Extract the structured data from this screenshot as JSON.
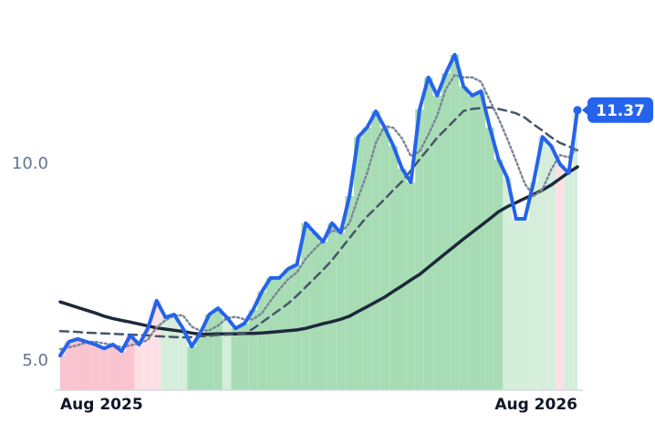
{
  "chart_data": {
    "type": "line",
    "categories": [
      "Aug 2025",
      null,
      null,
      null,
      null,
      null,
      null,
      null,
      null,
      null,
      null,
      null,
      null,
      null,
      null,
      null,
      null,
      null,
      null,
      null,
      null,
      null,
      null,
      null,
      null,
      null,
      null,
      null,
      null,
      null,
      null,
      null,
      null,
      null,
      null,
      null,
      null,
      null,
      null,
      null,
      null,
      null,
      null,
      null,
      null,
      null,
      null,
      null,
      null,
      null,
      null,
      null,
      null,
      null,
      null,
      null,
      null,
      null,
      null,
      "Aug 2026"
    ],
    "ylim": [
      4.26,
      13.24
    ],
    "yticks": [
      {
        "value": 5,
        "label": "5.0"
      },
      {
        "value": 10,
        "label": "10.0"
      }
    ],
    "grid": false,
    "bar_colors": [
      "#f9c4cf",
      "#f9c4cf",
      "#f9c4cf",
      "#f9c4cf",
      "#f9c4cf",
      "#f9c4cf",
      "#f9c4cf",
      "#f9c4cf",
      "#f9c4cf",
      "#fde0e6",
      "#fde0e6",
      "#fde0e6",
      "#d4eedb",
      "#d4eedb",
      "#d4eedb",
      "#a8dcb5",
      "#a8dcb5",
      "#a8dcb5",
      "#a8dcb5",
      "#d4eedb",
      "#a8dcb5",
      "#a8dcb5",
      "#a8dcb5",
      "#a8dcb5",
      "#a8dcb5",
      "#a8dcb5",
      "#a8dcb5",
      "#a8dcb5",
      "#a8dcb5",
      "#a8dcb5",
      "#a8dcb5",
      "#a8dcb5",
      "#a8dcb5",
      "#a8dcb5",
      "#a8dcb5",
      "#a8dcb5",
      "#a8dcb5",
      "#a8dcb5",
      "#a8dcb5",
      "#a8dcb5",
      "#a8dcb5",
      "#a8dcb5",
      "#a8dcb5",
      "#a8dcb5",
      "#a8dcb5",
      "#a8dcb5",
      "#a8dcb5",
      "#a8dcb5",
      "#a8dcb5",
      "#a8dcb5",
      "#a8dcb5",
      "#d4eedb",
      "#d4eedb",
      "#d4eedb",
      "#d4eedb",
      "#d4eedb",
      "#d4eedb",
      "#fde0e6",
      "#d4eedb",
      "#d4eedb"
    ],
    "series": [
      {
        "color": "#2563eb",
        "values": [
          5.14,
          5.49,
          5.56,
          5.49,
          5.42,
          5.32,
          5.42,
          5.25,
          5.65,
          5.42,
          5.83,
          6.53,
          6.11,
          6.18,
          5.83,
          5.37,
          5.72,
          6.18,
          6.34,
          6.11,
          5.83,
          5.95,
          6.3,
          6.76,
          7.11,
          7.11,
          7.34,
          7.45,
          8.5,
          8.26,
          8.03,
          8.5,
          8.26,
          9.19,
          10.69,
          10.93,
          11.34,
          10.93,
          10.46,
          9.88,
          9.54,
          11.39,
          12.2,
          11.74,
          12.31,
          12.78,
          11.97,
          11.74,
          11.85,
          10.93,
          10.12,
          9.65,
          8.61,
          8.61,
          9.54,
          10.69,
          10.46,
          10.0,
          9.77,
          11.37
        ]
      },
      {
        "color": "#7a8798",
        "dash": "2 3",
        "values": [
          5.3,
          5.35,
          5.4,
          5.48,
          5.49,
          5.45,
          5.41,
          5.35,
          5.4,
          5.44,
          5.54,
          5.86,
          6.03,
          6.16,
          6.16,
          5.87,
          5.77,
          5.78,
          5.9,
          6.09,
          6.12,
          6.06,
          6.06,
          6.21,
          6.53,
          6.82,
          7.08,
          7.25,
          7.6,
          7.84,
          8.06,
          8.32,
          8.26,
          8.5,
          9.16,
          9.77,
          10.54,
          10.97,
          10.92,
          10.65,
          10.2,
          10.32,
          10.75,
          11.23,
          11.91,
          12.26,
          12.2,
          12.2,
          12.09,
          11.62,
          11.16,
          10.64,
          10.08,
          9.5,
          9.19,
          9.35,
          9.86,
          10.23,
          10.17,
          10.41
        ]
      },
      {
        "color": "#475569",
        "dash": "9 6",
        "values": [
          5.76,
          5.75,
          5.74,
          5.72,
          5.71,
          5.7,
          5.69,
          5.68,
          5.67,
          5.66,
          5.65,
          5.63,
          5.62,
          5.61,
          5.6,
          5.61,
          5.63,
          5.64,
          5.66,
          5.67,
          5.68,
          5.7,
          5.82,
          5.98,
          6.14,
          6.3,
          6.46,
          6.66,
          6.88,
          7.1,
          7.32,
          7.56,
          7.84,
          8.12,
          8.4,
          8.67,
          8.89,
          9.11,
          9.34,
          9.56,
          9.84,
          10.12,
          10.39,
          10.67,
          10.89,
          11.12,
          11.35,
          11.4,
          11.42,
          11.44,
          11.4,
          11.35,
          11.29,
          11.18,
          11.01,
          10.85,
          10.68,
          10.54,
          10.45,
          10.35
        ]
      },
      {
        "color": "#1e293b",
        "values": [
          6.5,
          6.43,
          6.36,
          6.29,
          6.22,
          6.14,
          6.08,
          6.03,
          5.99,
          5.94,
          5.89,
          5.84,
          5.81,
          5.78,
          5.75,
          5.71,
          5.68,
          5.68,
          5.69,
          5.69,
          5.69,
          5.7,
          5.7,
          5.71,
          5.73,
          5.75,
          5.77,
          5.79,
          5.83,
          5.89,
          5.95,
          6.0,
          6.06,
          6.14,
          6.26,
          6.38,
          6.5,
          6.62,
          6.77,
          6.91,
          7.06,
          7.2,
          7.38,
          7.56,
          7.74,
          7.92,
          8.1,
          8.27,
          8.44,
          8.61,
          8.79,
          8.92,
          9.02,
          9.13,
          9.23,
          9.34,
          9.47,
          9.63,
          9.79,
          9.93
        ]
      }
    ]
  }
}
